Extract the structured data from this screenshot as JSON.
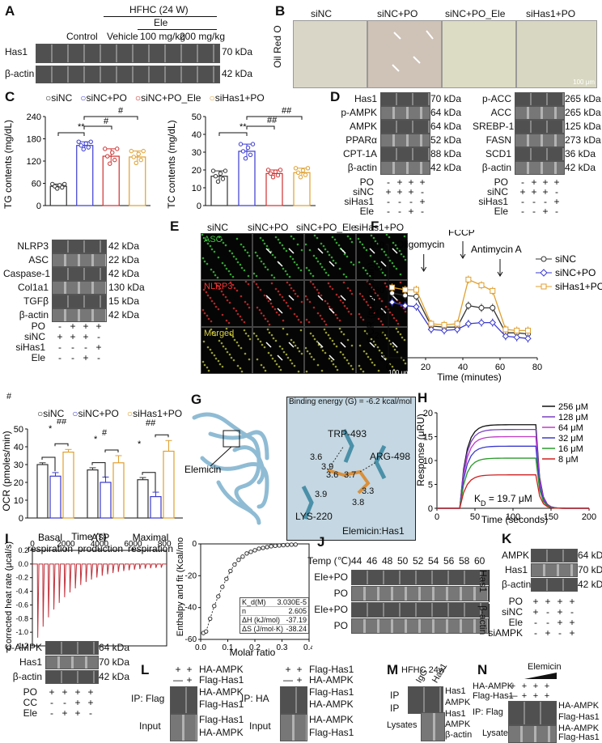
{
  "panels": {
    "A": {
      "letter": "A",
      "group": "HFHC (24 W)",
      "subgroup": "Ele",
      "conditions": [
        "Control",
        "Vehicle",
        "100 mg/kg",
        "200 mg/kg"
      ],
      "bands": [
        {
          "name": "Has1",
          "size": "70 kDa"
        },
        {
          "name": "β-actin",
          "size": "42 kDa"
        }
      ]
    },
    "B": {
      "letter": "B",
      "stain": "Oil Red O",
      "conditions": [
        "siNC",
        "siNC+PO",
        "siNC+PO_Ele",
        "siHas1+PO"
      ],
      "scale": "100 μm"
    },
    "C": {
      "letter": "C",
      "legend": [
        "siNC",
        "siNC+PO",
        "siNC+PO_Ele",
        "siHas1+PO"
      ],
      "tg_ylabel": "TG contents (mg/dL)",
      "tc_ylabel": "TC contents (mg/dL)",
      "sig": [
        "**",
        "#",
        "#",
        "**",
        "##",
        "##"
      ]
    },
    "D": {
      "letter": "D",
      "left_bands": [
        {
          "name": "Has1",
          "size": "70 kDa"
        },
        {
          "name": "p-AMPK",
          "size": "64 kDa"
        },
        {
          "name": "AMPK",
          "size": "64 kDa"
        },
        {
          "name": "PPARα",
          "size": "52 kDa"
        },
        {
          "name": "CPT-1A",
          "size": "88 kDa"
        },
        {
          "name": "β-actin",
          "size": "42 kDa"
        }
      ],
      "right_bands": [
        {
          "name": "p-ACC",
          "size": "265 kDa"
        },
        {
          "name": "ACC",
          "size": "265 kDa"
        },
        {
          "name": "SREBP-1c",
          "size": "125 kDa"
        },
        {
          "name": "FASN",
          "size": "273 kDa"
        },
        {
          "name": "SCD1",
          "size": "36 kDa"
        },
        {
          "name": "β-actin",
          "size": "42 kDa"
        }
      ],
      "rows": [
        {
          "label": "PO",
          "marks": "- + + +"
        },
        {
          "label": "siNC",
          "marks": "+ + + -"
        },
        {
          "label": "siHas1",
          "marks": "- - - +"
        },
        {
          "label": "Ele",
          "marks": "- - + -"
        }
      ]
    },
    "E": {
      "letter": "E",
      "bands": [
        {
          "name": "NLRP3",
          "size": "42 kDa"
        },
        {
          "name": "ASC",
          "size": "22 kDa"
        },
        {
          "name": "Caspase-1",
          "size": "42 kDa"
        },
        {
          "name": "Col1a1",
          "size": "130 kDa"
        },
        {
          "name": "TGFβ",
          "size": "15 kDa"
        },
        {
          "name": "β-actin",
          "size": "42 kDa"
        }
      ],
      "rows": [
        {
          "label": "PO",
          "marks": "- + + +"
        },
        {
          "label": "siNC",
          "marks": "+ + + -"
        },
        {
          "label": "siHas1",
          "marks": "- - - +"
        },
        {
          "label": "Ele",
          "marks": "- - + -"
        }
      ],
      "conditions": [
        "siNC",
        "siNC+PO",
        "siNC+PO_Ele",
        "siHas1+PO"
      ],
      "channels": [
        "ASC",
        "NLRP3",
        "Merged"
      ],
      "scale": "100 μm"
    },
    "F": {
      "letter": "F",
      "ylabel": "OCR (pmoles/min)",
      "xlabel": "Time (minutes)",
      "annotations": [
        "Oligomycin",
        "FCCP",
        "Antimycin A"
      ],
      "legend": [
        "siNC",
        "siNC+PO",
        "siHas1+PO"
      ]
    },
    "F2": {
      "hash": "#",
      "legend": [
        "siNC",
        "siNC+PO",
        "siHas1+PO"
      ],
      "ylabel": "OCR (pmoles/min)",
      "categories": [
        "Basal respiration",
        "ATP production",
        "Maximal respiration"
      ],
      "cat_lines": [
        [
          "Basal",
          "respiration"
        ],
        [
          "ATP",
          "production"
        ],
        [
          "Maximal",
          "respiration"
        ]
      ],
      "sig": [
        "*",
        "##",
        "*",
        "#",
        "*",
        "##"
      ]
    },
    "G": {
      "letter": "G",
      "binding": "Binding energy (G) = -6.2 kcal/mol",
      "residues": [
        "TRP-493",
        "ARG-498",
        "LYS-220"
      ],
      "distances": [
        "3.6",
        "3.9",
        "3.6",
        "3.7",
        "3.3",
        "3.9",
        "3.8"
      ],
      "ligand": "Elemicin",
      "complex": "Elemicin:Has1"
    },
    "H": {
      "letter": "H",
      "ylabel": "Response (μRU)",
      "xlabel": "Time (seconds)",
      "kd": "K",
      "kd_sub": "D",
      "kd_val": "= 19.7 μM",
      "legend": [
        "256 μM",
        "128 μM",
        "64 μM",
        "32 μM",
        "16 μM",
        "8 μM"
      ],
      "colors": [
        "#111111",
        "#7a3fc0",
        "#c03ac8",
        "#3a3ad0",
        "#2a9a2a",
        "#d02020"
      ]
    },
    "I": {
      "letter": "I",
      "top_xlabel": "Time (s)",
      "ylabel": "Corrected heat rate (μcal/s)",
      "fit_ylabel": "Enthalpy and fit (Kcal/mol)",
      "fit_xlabel": "Molar ratio",
      "table": [
        [
          "K_d(M)",
          "3.030E-5"
        ],
        [
          "n",
          "2.605"
        ],
        [
          "ΔH (kJ/mol)",
          "-37.19"
        ],
        [
          "ΔS (J/mol·K)",
          "-38.24"
        ]
      ]
    },
    "J": {
      "letter": "J",
      "temp_label": "Temp (℃)",
      "temps": [
        "44",
        "46",
        "48",
        "50",
        "52",
        "54",
        "56",
        "58",
        "60"
      ],
      "rows": [
        "Ele+PO",
        "PO",
        "Ele+PO",
        "PO"
      ],
      "side": [
        "Has1",
        "β-actin"
      ]
    },
    "K": {
      "letter": "K",
      "bands": [
        {
          "name": "AMPK",
          "size": "64 kDa"
        },
        {
          "name": "Has1",
          "size": "70 kDa"
        },
        {
          "name": "β-actin",
          "size": "42 kDa"
        }
      ],
      "rows": [
        {
          "label": "PO",
          "marks": "+ + + +"
        },
        {
          "label": "siNC",
          "marks": "+ - + -"
        },
        {
          "label": "Ele",
          "marks": "- - + +"
        },
        {
          "label": "siAMPK",
          "marks": "- + - +"
        }
      ]
    },
    "K2": {
      "bands": [
        {
          "name": "p-AMPK",
          "size": "64 kDa"
        },
        {
          "name": "Has1",
          "size": "70 kDa"
        },
        {
          "name": "β-actin",
          "size": "42 kDa"
        }
      ],
      "rows": [
        {
          "label": "PO",
          "marks": "+ + + +"
        },
        {
          "label": "CC",
          "marks": "- - + +"
        },
        {
          "label": "Ele",
          "marks": "- + + -"
        }
      ]
    },
    "L": {
      "letter": "L",
      "left_top": [
        {
          "label": "HA-AMPK",
          "marks": "+ +"
        },
        {
          "label": "Flag-Has1",
          "marks": "— +"
        }
      ],
      "left_ip": "IP: Flag",
      "left_ip_bands": [
        "HA-AMPK",
        "Flag-Has1"
      ],
      "left_input_bands": [
        "Flag-Has1",
        "HA-AMPK"
      ],
      "right_top": [
        {
          "label": "Flag-Has1",
          "marks": "+ +"
        },
        {
          "label": "HA-AMPK",
          "marks": "— +"
        }
      ],
      "right_ip": "IP: HA",
      "right_ip_bands": [
        "Flag-Has1",
        "HA-AMPK"
      ],
      "right_input_bands": [
        "HA-AMPK",
        "Flag-Has1"
      ],
      "input": "Input"
    },
    "M": {
      "letter": "M",
      "title": "HFHC 24w",
      "lanes": [
        "IgG",
        "Has1"
      ],
      "ip": "IP",
      "ip_bands": [
        "Has1",
        "AMPK"
      ],
      "lysates": "Lysates",
      "lys_bands": [
        "Has1",
        "AMPK",
        "β-actin"
      ]
    },
    "N": {
      "letter": "N",
      "drug": "Elemicin",
      "rows": [
        {
          "label": "HA-AMPK",
          "marks": "+ + + +"
        },
        {
          "label": "Flag-Has1",
          "marks": "— + + +"
        }
      ],
      "ip": "IP: Flag",
      "ip_bands": [
        "HA-AMPK",
        "Flag-Has1"
      ],
      "lysates": "Lysates",
      "lys_bands": [
        "HA-AMPK",
        "Flag-Has1"
      ]
    }
  },
  "chart_data": [
    {
      "type": "bar",
      "title": "",
      "ylabel": "TG contents (mg/dL)",
      "categories": [
        "siNC",
        "siNC+PO",
        "siNC+PO_Ele",
        "siHas1+PO"
      ],
      "values": [
        52,
        162,
        133,
        131
      ],
      "errors": [
        6,
        10,
        20,
        16
      ],
      "ylim": [
        0,
        240
      ],
      "yticks": [
        0,
        60,
        120,
        180,
        240
      ]
    },
    {
      "type": "bar",
      "title": "",
      "ylabel": "TC contents (mg/dL)",
      "categories": [
        "siNC",
        "siNC+PO",
        "siNC+PO_Ele",
        "siHas1+PO"
      ],
      "values": [
        16.5,
        30.5,
        18,
        18.5
      ],
      "errors": [
        3,
        4,
        2,
        2.5
      ],
      "ylim": [
        0,
        50
      ],
      "yticks": [
        0,
        10,
        20,
        30,
        40,
        50
      ]
    },
    {
      "type": "line",
      "ylabel": "OCR (pmoles/min)",
      "xlabel": "Time (minutes)",
      "x": [
        2,
        9,
        15,
        23,
        30,
        37,
        43,
        50,
        56,
        63,
        69,
        75
      ],
      "xlim": [
        0,
        80
      ],
      "xticks": [
        0,
        20,
        40,
        60,
        80
      ],
      "ylim": [
        0,
        100
      ],
      "yticks": [
        0,
        20,
        40,
        60,
        80,
        100
      ],
      "series": [
        {
          "name": "siNC",
          "values": [
            57,
            55,
            54,
            28,
            27,
            27,
            46,
            44,
            44,
            22,
            22,
            21
          ]
        },
        {
          "name": "siNC+PO",
          "values": [
            49,
            46,
            45,
            25,
            24,
            25,
            30,
            31,
            31,
            19,
            18,
            17
          ]
        },
        {
          "name": "siHas1+PO",
          "values": [
            62,
            60,
            60,
            30,
            29,
            30,
            69,
            64,
            59,
            25,
            24,
            24
          ]
        }
      ]
    },
    {
      "type": "bar",
      "ylabel": "OCR (pmoles/min)",
      "categories": [
        "Basal respiration",
        "ATP production",
        "Maximal respiration"
      ],
      "ylim": [
        0,
        50
      ],
      "yticks": [
        0,
        10,
        20,
        30,
        40,
        50
      ],
      "series": [
        {
          "name": "siNC",
          "values": [
            30,
            27,
            21.5
          ],
          "errors": [
            1,
            1.2,
            1.2
          ]
        },
        {
          "name": "siNC+PO",
          "values": [
            23.5,
            20,
            12
          ],
          "errors": [
            2,
            3,
            2.5
          ]
        },
        {
          "name": "siHas1+PO",
          "values": [
            37,
            31,
            37.5
          ],
          "errors": [
            1.5,
            4,
            6
          ]
        }
      ]
    },
    {
      "type": "line",
      "ylabel": "Response (μRU)",
      "xlabel": "Time (seconds)",
      "xlim": [
        0,
        200
      ],
      "xticks": [
        0,
        50,
        100,
        150,
        200
      ],
      "ylim": [
        0,
        20
      ],
      "yticks": [
        0,
        5,
        10,
        15,
        20
      ],
      "series": [
        {
          "name": "256 μM",
          "plateau": 17.5
        },
        {
          "name": "128 μM",
          "plateau": 16.5
        },
        {
          "name": "64 μM",
          "plateau": 15.0
        },
        {
          "name": "32 μM",
          "plateau": 13.0
        },
        {
          "name": "16 μM",
          "plateau": 10.5
        },
        {
          "name": "8 μM",
          "plateau": 7.0
        }
      ]
    },
    {
      "type": "line",
      "ylabel": "Corrected heat rate (μcal/s)",
      "xlabel": "Time (s)",
      "xlim": [
        0,
        8000
      ],
      "xticks": [
        0,
        2000,
        4000,
        6000,
        8000
      ],
      "ylim": [
        -1.2,
        0.2
      ],
      "yticks": [
        0.2,
        0.0,
        -0.2,
        -0.4,
        -0.6,
        -0.8,
        -1.0,
        -1.2
      ]
    },
    {
      "type": "scatter",
      "ylabel": "Enthalpy and fit (Kcal/mol)",
      "xlabel": "Molar ratio",
      "xlim": [
        0,
        0.4
      ],
      "xticks": [
        0.0,
        0.1,
        0.2,
        0.3,
        0.4
      ],
      "ylim": [
        -60,
        0
      ],
      "yticks": [
        0,
        -20,
        -40,
        -60
      ],
      "x": [
        0.01,
        0.02,
        0.035,
        0.05,
        0.065,
        0.08,
        0.095,
        0.11,
        0.125,
        0.14,
        0.155,
        0.17,
        0.185,
        0.2,
        0.215,
        0.23,
        0.245,
        0.26,
        0.275,
        0.29,
        0.305,
        0.32,
        0.335,
        0.35
      ],
      "y": [
        -56,
        -55,
        -47,
        -39,
        -33,
        -27,
        -22,
        -17,
        -13,
        -10,
        -8,
        -6,
        -5,
        -4,
        -3,
        -2.5,
        -2,
        -1.5,
        -1.2,
        -1,
        -0.8,
        -0.6,
        -0.5,
        -0.4
      ]
    }
  ]
}
